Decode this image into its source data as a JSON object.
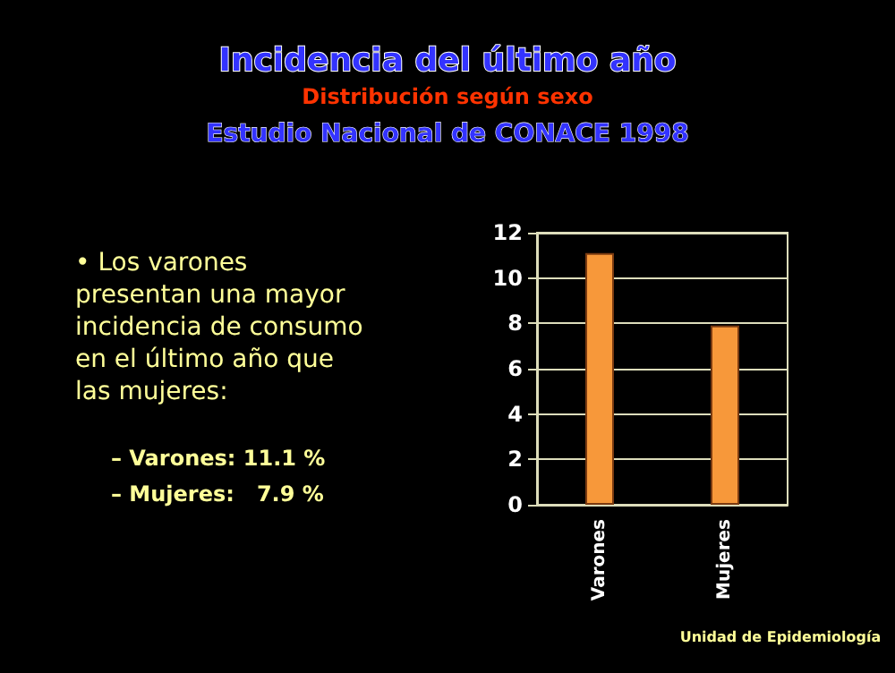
{
  "chart_data": {
    "type": "bar",
    "title": "Incidencia del último año",
    "subtitle": "Distribución según sexo",
    "annotations": [
      "Estudio Nacional de CONACE 1998",
      "• Los varones presentan una mayor incidencia de consumo en el último año que las mujeres:",
      "– Varones: 11.1 %",
      "– Mujeres:   7.9 %",
      "Unidad de Epidemiología"
    ],
    "categories": [
      "Varones",
      "Mujeres"
    ],
    "values": [
      11.1,
      7.9
    ],
    "color": "#f7983a",
    "ylim": [
      0,
      12
    ],
    "yticks": [
      0,
      2,
      4,
      6,
      8,
      10,
      12
    ],
    "grid": true
  }
}
